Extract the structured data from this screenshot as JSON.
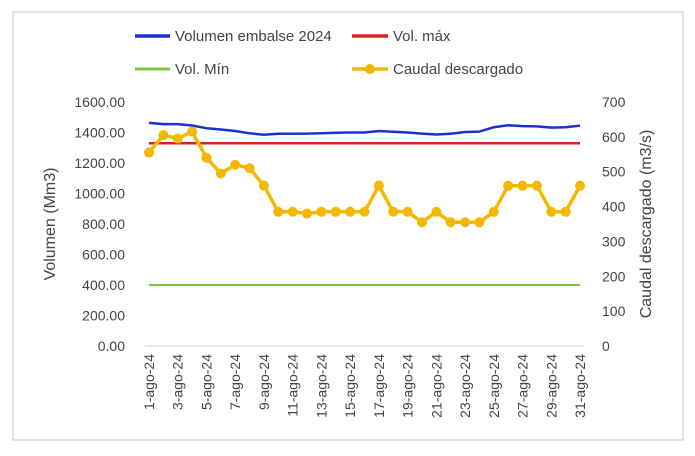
{
  "chart_data": {
    "type": "line",
    "title": "",
    "x_categories": [
      "1-ago-24",
      "2-ago-24",
      "3-ago-24",
      "4-ago-24",
      "5-ago-24",
      "6-ago-24",
      "7-ago-24",
      "8-ago-24",
      "9-ago-24",
      "10-ago-24",
      "11-ago-24",
      "12-ago-24",
      "13-ago-24",
      "14-ago-24",
      "15-ago-24",
      "16-ago-24",
      "17-ago-24",
      "18-ago-24",
      "19-ago-24",
      "20-ago-24",
      "21-ago-24",
      "22-ago-24",
      "23-ago-24",
      "24-ago-24",
      "25-ago-24",
      "26-ago-24",
      "27-ago-24",
      "28-ago-24",
      "29-ago-24",
      "30-ago-24",
      "31-ago-24"
    ],
    "x_tick_labels": [
      "1-ago-24",
      "3-ago-24",
      "5-ago-24",
      "7-ago-24",
      "9-ago-24",
      "11-ago-24",
      "13-ago-24",
      "15-ago-24",
      "17-ago-24",
      "19-ago-24",
      "21-ago-24",
      "23-ago-24",
      "25-ago-24",
      "27-ago-24",
      "29-ago-24",
      "31-ago-24"
    ],
    "y_left": {
      "label": "Volumen (Mm3)",
      "min": 0,
      "max": 1600,
      "tick_labels": [
        "0.00",
        "200.00",
        "400.00",
        "600.00",
        "800.00",
        "1000.00",
        "1200.00",
        "1400.00",
        "1600.00"
      ]
    },
    "y_right": {
      "label": "Caudal descargado (m3/s)",
      "min": 0,
      "max": 700,
      "tick_labels": [
        "0",
        "100",
        "200",
        "300",
        "400",
        "500",
        "600",
        "700"
      ]
    },
    "legend_position": "top",
    "series": [
      {
        "name": "Volumen embalse 2024",
        "color": "#1f2fd6",
        "axis": "left",
        "markers": false,
        "values": [
          1463,
          1455,
          1455,
          1446,
          1428,
          1420,
          1410,
          1395,
          1385,
          1392,
          1392,
          1393,
          1395,
          1398,
          1400,
          1400,
          1410,
          1405,
          1400,
          1393,
          1387,
          1392,
          1403,
          1406,
          1435,
          1447,
          1442,
          1440,
          1432,
          1435,
          1445
        ]
      },
      {
        "name": "Vol. máx",
        "color": "#e0201b",
        "axis": "left",
        "markers": false,
        "values": [
          1330,
          1330,
          1330,
          1330,
          1330,
          1330,
          1330,
          1330,
          1330,
          1330,
          1330,
          1330,
          1330,
          1330,
          1330,
          1330,
          1330,
          1330,
          1330,
          1330,
          1330,
          1330,
          1330,
          1330,
          1330,
          1330,
          1330,
          1330,
          1330,
          1330,
          1330
        ]
      },
      {
        "name": "Vol. Mín",
        "color": "#7dc642",
        "axis": "left",
        "markers": false,
        "values": [
          400,
          400,
          400,
          400,
          400,
          400,
          400,
          400,
          400,
          400,
          400,
          400,
          400,
          400,
          400,
          400,
          400,
          400,
          400,
          400,
          400,
          400,
          400,
          400,
          400,
          400,
          400,
          400,
          400,
          400,
          400
        ]
      },
      {
        "name": "Caudal descargado",
        "color": "#f5b800",
        "axis": "right",
        "markers": true,
        "values": [
          555,
          605,
          595,
          615,
          540,
          495,
          520,
          510,
          460,
          385,
          385,
          380,
          385,
          385,
          385,
          385,
          460,
          385,
          385,
          355,
          385,
          355,
          355,
          355,
          385,
          460,
          460,
          460,
          385,
          385,
          460
        ]
      }
    ]
  }
}
